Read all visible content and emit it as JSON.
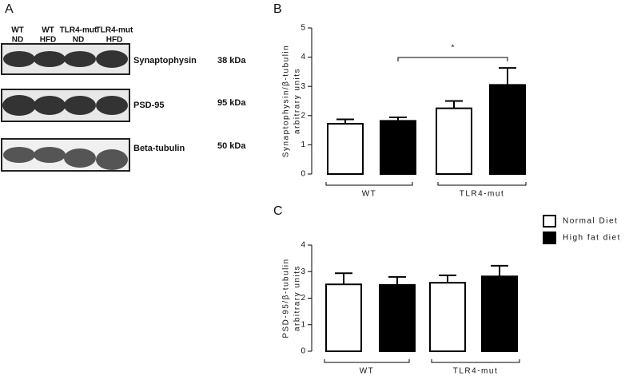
{
  "blot": {
    "panel": "A",
    "lanes": [
      [
        "WT",
        "ND"
      ],
      [
        "WT",
        "HFD"
      ],
      [
        "TLR4-mut",
        "ND"
      ],
      [
        "TLR4-mut",
        "HFD"
      ]
    ],
    "blots": [
      {
        "protein": "Synaptophysin",
        "size": "38 kDa"
      },
      {
        "protein": "PSD-95",
        "size": "95 kDa"
      },
      {
        "protein": "Beta-tubulin",
        "size": "50 kDa"
      }
    ]
  },
  "chart_data": [
    {
      "type": "bar",
      "panel": "B",
      "ylabel": [
        "Synaptophysin/β-tubulin",
        "arbitrary units"
      ],
      "categories": [
        "WT",
        "TLR4-mut"
      ],
      "series": [
        {
          "color": "#ffffff",
          "values": [
            1.72,
            2.25
          ],
          "errors": [
            0.15,
            0.25
          ]
        },
        {
          "color": "#000000",
          "values": [
            1.82,
            3.05
          ],
          "errors": [
            0.12,
            0.58
          ]
        }
      ],
      "ylim": [
        0,
        5
      ],
      "yticks": [
        0,
        1,
        2,
        3,
        4,
        5
      ],
      "significance": "*"
    },
    {
      "type": "bar",
      "panel": "C",
      "ylabel": [
        "PSD-95/β-tubulin",
        "arbitrary units"
      ],
      "categories": [
        "WT",
        "TLR4-mut"
      ],
      "series": [
        {
          "name": "Normal Diet",
          "color": "#ffffff",
          "values": [
            2.52,
            2.58
          ],
          "errors": [
            0.42,
            0.28
          ]
        },
        {
          "name": "High fat diet",
          "color": "#000000",
          "values": [
            2.5,
            2.82
          ],
          "errors": [
            0.3,
            0.4
          ]
        }
      ],
      "ylim": [
        0,
        4
      ],
      "yticks": [
        0,
        1,
        2,
        3,
        4
      ],
      "legend": "right"
    }
  ]
}
